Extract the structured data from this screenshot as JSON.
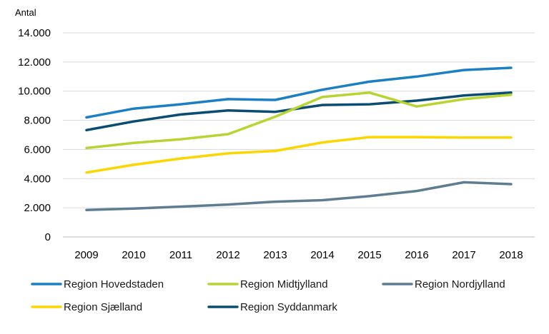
{
  "chart_data": {
    "type": "line",
    "ylabel": "Antal",
    "x": [
      "2009",
      "2010",
      "2011",
      "2012",
      "2013",
      "2014",
      "2015",
      "2016",
      "2017",
      "2018"
    ],
    "ylim": [
      0,
      14000
    ],
    "yticks": [
      0,
      2000,
      4000,
      6000,
      8000,
      10000,
      12000,
      14000
    ],
    "ytick_labels": [
      "0",
      "2.000",
      "4.000",
      "6.000",
      "8.000",
      "10.000",
      "12.000",
      "14.000"
    ],
    "grid": true,
    "legend_position": "bottom",
    "series": [
      {
        "name": "Region Hovedstaden",
        "color": "#1b7fc4",
        "values": [
          8200,
          8800,
          9100,
          9450,
          9400,
          10100,
          10650,
          11000,
          11450,
          11600
        ]
      },
      {
        "name": "Region Midtjylland",
        "color": "#b8d432",
        "values": [
          6100,
          6450,
          6700,
          7050,
          8250,
          9600,
          9900,
          8950,
          9450,
          9750
        ]
      },
      {
        "name": "Region Nordjylland",
        "color": "#5f7d91",
        "values": [
          1850,
          1950,
          2080,
          2220,
          2420,
          2520,
          2800,
          3150,
          3750,
          3620
        ]
      },
      {
        "name": "Region Sjælland",
        "color": "#fbd600",
        "values": [
          4420,
          4950,
          5380,
          5730,
          5900,
          6480,
          6850,
          6850,
          6820,
          6820
        ]
      },
      {
        "name": "Region Syddanmark",
        "color": "#0a4d72",
        "values": [
          7330,
          7920,
          8400,
          8680,
          8580,
          9050,
          9100,
          9350,
          9700,
          9900
        ]
      }
    ]
  }
}
